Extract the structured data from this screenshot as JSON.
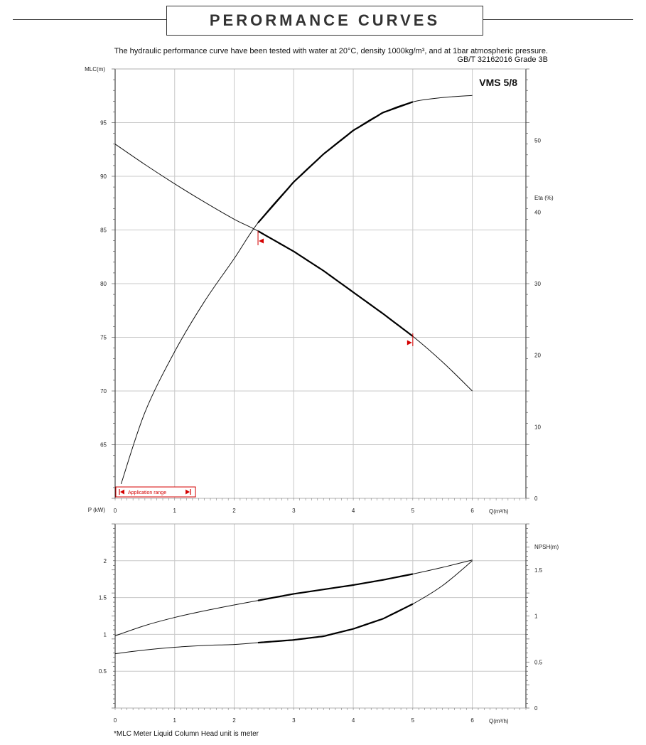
{
  "header": {
    "title": "PERORMANCE CURVES",
    "description": "The hydraulic performance curve have been tested with water at 20°C, density 1000kg/m³, and at 1bar atmospheric pressure.",
    "standard": "GB/T 32162016 Grade 3B"
  },
  "footnote": "*MLC Meter Liquid Column Head unit is meter",
  "chart_data": [
    {
      "type": "line",
      "model_label": "VMS 5/8",
      "ylabel": "MLC(m)",
      "ylabel_right": "Eta (%)",
      "xlabel": "Q(m³/h)",
      "xlim": [
        0,
        6.9
      ],
      "ylim": [
        60,
        100
      ],
      "ylim_right": [
        0,
        60
      ],
      "x_ticks": [
        0,
        1,
        2,
        3,
        4,
        5,
        6
      ],
      "y_ticks": [
        65,
        70,
        75,
        80,
        85,
        90,
        95
      ],
      "y_ticks_right": [
        0,
        10,
        20,
        30,
        40,
        50
      ],
      "grid": true,
      "application_range": {
        "label": "Application range",
        "x": [
          0,
          1.35
        ]
      },
      "duty_range": [
        2.4,
        5.0
      ],
      "series": [
        {
          "axis": "left",
          "x": [
            0,
            0.5,
            1.0,
            1.5,
            2.0,
            2.4,
            3.0,
            3.5,
            4.0,
            4.5,
            5.0,
            5.5,
            6.0
          ],
          "values": [
            93,
            91.1,
            89.3,
            87.6,
            86.0,
            84.9,
            83.0,
            81.2,
            79.2,
            77.2,
            75.1,
            72.7,
            70.0
          ]
        },
        {
          "axis": "right",
          "x": [
            0.1,
            0.5,
            1.0,
            1.5,
            2.0,
            2.4,
            3.0,
            3.5,
            4.0,
            4.5,
            5.0,
            5.5,
            6.0
          ],
          "values": [
            2,
            12,
            20.5,
            27.5,
            33.5,
            38.5,
            44.2,
            48.1,
            51.4,
            53.9,
            55.4,
            56.0,
            56.3
          ]
        }
      ]
    },
    {
      "type": "line",
      "ylabel": "P (kW)",
      "ylabel_right": "NPSH(m)",
      "xlabel": "Q(m³/h)",
      "xlim": [
        0,
        6.9
      ],
      "ylim": [
        0,
        2.5
      ],
      "ylim_right": [
        0,
        2.0
      ],
      "x_ticks": [
        0,
        1,
        2,
        3,
        4,
        5,
        6
      ],
      "y_ticks": [
        0.5,
        1,
        1.5,
        2
      ],
      "y_ticks_right": [
        0,
        0.5,
        1,
        1.5
      ],
      "grid": true,
      "duty_range": [
        2.4,
        5.0
      ],
      "series": [
        {
          "axis": "left",
          "x": [
            0,
            0.5,
            1.0,
            1.5,
            2.0,
            2.4,
            3.0,
            3.5,
            4.0,
            4.5,
            5.0,
            5.5,
            6.0
          ],
          "values": [
            0.98,
            1.12,
            1.23,
            1.32,
            1.4,
            1.46,
            1.55,
            1.61,
            1.67,
            1.74,
            1.82,
            1.91,
            2.01
          ]
        },
        {
          "axis": "right",
          "x": [
            0,
            0.5,
            1.0,
            1.5,
            2.0,
            2.4,
            3.0,
            3.5,
            4.0,
            4.5,
            5.0,
            5.5,
            6.0
          ],
          "values": [
            0.59,
            0.63,
            0.66,
            0.68,
            0.69,
            0.71,
            0.74,
            0.78,
            0.86,
            0.97,
            1.13,
            1.33,
            1.6
          ]
        }
      ]
    }
  ]
}
